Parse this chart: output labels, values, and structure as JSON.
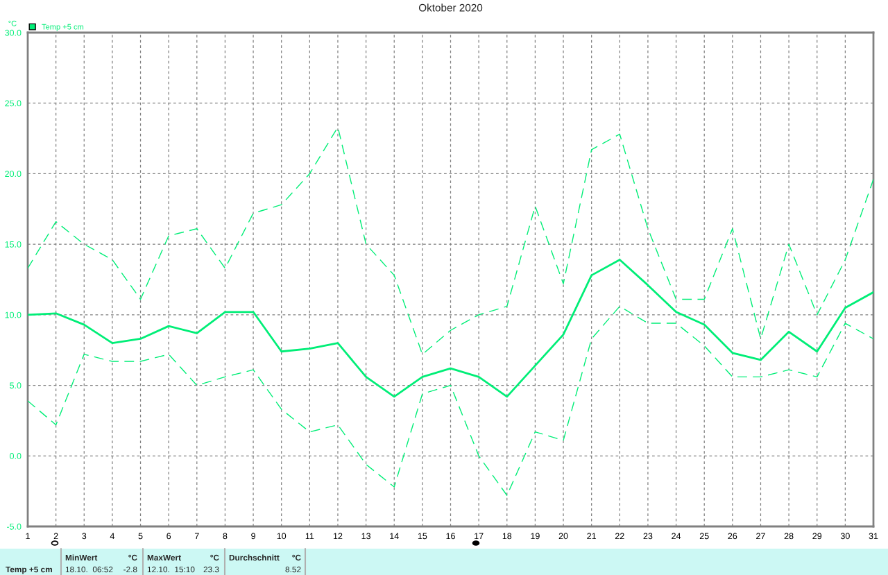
{
  "chart_data": {
    "type": "line",
    "title": "Oktober 2020",
    "ylabel": "°C",
    "x": [
      1,
      2,
      3,
      4,
      5,
      6,
      7,
      8,
      9,
      10,
      11,
      12,
      13,
      14,
      15,
      16,
      17,
      18,
      19,
      20,
      21,
      22,
      23,
      24,
      25,
      26,
      27,
      28,
      29,
      30,
      31
    ],
    "series": [
      {
        "name": "Temp +5 cm",
        "color": "#00ee77",
        "line_style": "solid",
        "values": [
          10.0,
          10.1,
          9.3,
          8.0,
          8.3,
          9.2,
          8.7,
          10.2,
          10.2,
          7.4,
          7.6,
          8.0,
          5.6,
          4.2,
          5.6,
          6.2,
          5.6,
          4.2,
          6.4,
          8.6,
          12.8,
          13.9,
          12.1,
          10.2,
          9.3,
          7.3,
          6.8,
          8.8,
          7.4,
          10.5,
          11.6
        ]
      },
      {
        "color": "#00ee77",
        "line_style": "dashed",
        "values": [
          13.3,
          16.6,
          15.0,
          13.9,
          11.1,
          15.6,
          16.1,
          13.3,
          17.2,
          17.8,
          20.0,
          23.3,
          15.0,
          12.8,
          7.2,
          8.9,
          10.0,
          10.6,
          17.7,
          12.2,
          21.7,
          22.8,
          16.1,
          11.1,
          11.1,
          16.1,
          8.3,
          15.0,
          10.0,
          13.9,
          19.6
        ]
      },
      {
        "color": "#00ee77",
        "line_style": "dashed",
        "values": [
          3.9,
          2.2,
          7.2,
          6.7,
          6.7,
          7.2,
          5.0,
          5.6,
          6.1,
          3.3,
          1.7,
          2.2,
          -0.6,
          -2.2,
          4.4,
          5.0,
          0.0,
          -2.8,
          1.7,
          1.1,
          8.3,
          10.6,
          9.4,
          9.4,
          7.8,
          5.6,
          5.6,
          6.1,
          5.6,
          9.4,
          8.3
        ]
      }
    ],
    "xlim": [
      1,
      31
    ],
    "xticks": [
      1,
      2,
      3,
      4,
      5,
      6,
      7,
      8,
      9,
      10,
      11,
      12,
      13,
      14,
      15,
      16,
      17,
      18,
      19,
      20,
      21,
      22,
      23,
      24,
      25,
      26,
      27,
      28,
      29,
      30,
      31
    ],
    "ylim": [
      -5,
      30
    ],
    "yticks": [
      {
        "value": -5,
        "label": "-5.0"
      },
      {
        "value": 0,
        "label": "0.0"
      },
      {
        "value": 5,
        "label": "5.0"
      },
      {
        "value": 10,
        "label": "10.0"
      },
      {
        "value": 15,
        "label": "15.0"
      },
      {
        "value": 20,
        "label": "20.0"
      },
      {
        "value": 25,
        "label": "25.0"
      },
      {
        "value": 30,
        "label": "30.0"
      }
    ],
    "grid": true,
    "legend": "top left",
    "marker": "none",
    "annotations": [
      "Temp +5 cm",
      "MinWert",
      "°C",
      "18.10.  06:52",
      "-2.8",
      "MaxWert",
      "°C",
      "12.10.  15:10",
      "23.3",
      "Durchschnitt",
      "°C",
      "8.52"
    ]
  }
}
